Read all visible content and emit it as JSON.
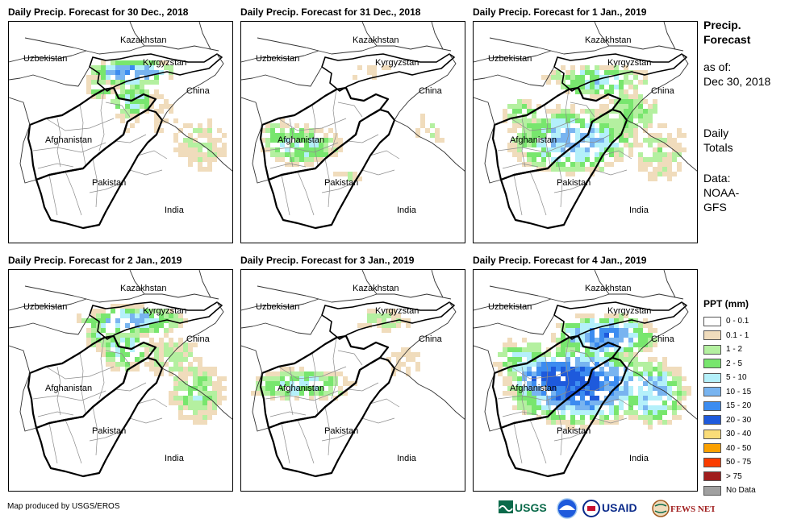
{
  "panels": [
    {
      "title": "Daily Precip. Forecast for 30 Dec., 2018",
      "pattern": "north-light"
    },
    {
      "title": "Daily Precip. Forecast for 31 Dec., 2018",
      "pattern": "west-light"
    },
    {
      "title": "Daily Precip. Forecast for 1 Jan., 2019",
      "pattern": "moderate"
    },
    {
      "title": "Daily Precip. Forecast for 2 Jan., 2019",
      "pattern": "north-east"
    },
    {
      "title": "Daily Precip. Forecast for 3 Jan., 2019",
      "pattern": "west-belt"
    },
    {
      "title": "Daily Precip. Forecast for 4 Jan., 2019",
      "pattern": "heavy"
    }
  ],
  "country_labels": {
    "kazakhstan": "Kazakhstan",
    "uzbekistan": "Uzbekistan",
    "kyrgyzstan": "Kyrgyzstan",
    "china": "China",
    "afghanistan": "Afghanistan",
    "pakistan": "Pakistan",
    "india": "India"
  },
  "side": {
    "title_line1": "Precip.",
    "title_line2": "Forecast",
    "asof_line1": "as of:",
    "asof_line2": "Dec 30, 2018",
    "totals_line1": "Daily",
    "totals_line2": "Totals",
    "data_line1": "Data:",
    "data_line2": "NOAA-",
    "data_line3": "GFS"
  },
  "legend": {
    "title": "PPT (mm)",
    "items": [
      {
        "label": "0 - 0.1",
        "color": "#ffffff"
      },
      {
        "label": "0.1 - 1",
        "color": "#f0dcbc"
      },
      {
        "label": "1 - 2",
        "color": "#b4f0a0"
      },
      {
        "label": "2 - 5",
        "color": "#78e66e"
      },
      {
        "label": "5 - 10",
        "color": "#b4f0fa"
      },
      {
        "label": "10 - 15",
        "color": "#78b4f0"
      },
      {
        "label": "15 - 20",
        "color": "#3c8cf0"
      },
      {
        "label": "20 - 30",
        "color": "#1e5adc"
      },
      {
        "label": "30 - 40",
        "color": "#fadc78"
      },
      {
        "label": "40 - 50",
        "color": "#faa000"
      },
      {
        "label": "50 - 75",
        "color": "#fa3c00"
      },
      {
        "label": "> 75",
        "color": "#a01e1e"
      },
      {
        "label": "No Data",
        "color": "#a0a0a0"
      }
    ]
  },
  "credit": "Map produced by USGS/EROS",
  "logos": {
    "usgs": "USGS",
    "usaid": "USAID",
    "fewsnet": "FEWS NET"
  }
}
